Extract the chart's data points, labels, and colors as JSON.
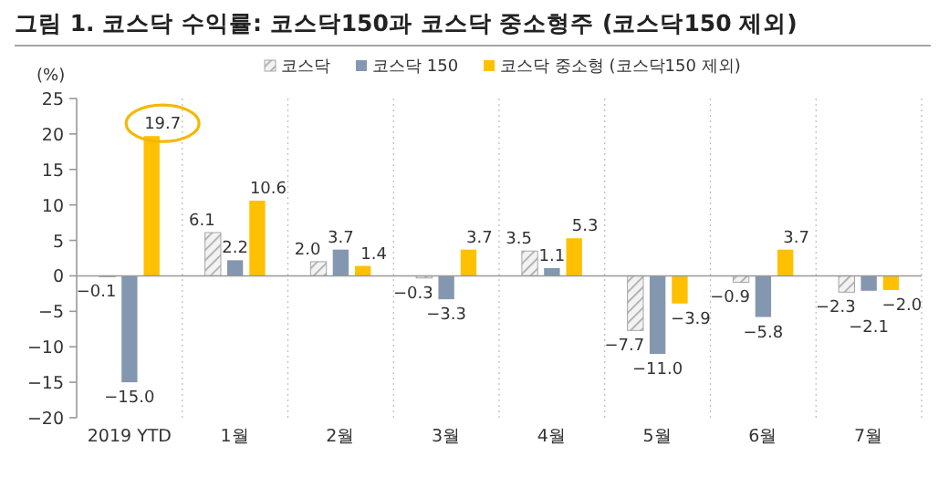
{
  "chart_data": {
    "type": "bar",
    "title": "그림 1. 코스닥 수익률: 코스닥150과 코스닥 중소형주 (코스닥150 제외)",
    "ylabel": "(%)",
    "categories": [
      "2019 YTD",
      "1월",
      "2월",
      "3월",
      "4월",
      "5월",
      "6월",
      "7월"
    ],
    "series": [
      {
        "name": "코스닥",
        "color": "#a6a6a6",
        "values": [
          -0.1,
          6.1,
          2.0,
          -0.3,
          3.5,
          -7.7,
          -0.9,
          -2.3
        ],
        "value_labels": [
          "−0.1",
          "6.1",
          "2.0",
          "−0.3",
          "3.5",
          "−7.7",
          "−0.9",
          "−2.3"
        ]
      },
      {
        "name": "코스닥 150",
        "color": "#8497b0",
        "values": [
          -15.0,
          2.2,
          3.7,
          -3.3,
          1.1,
          -11.0,
          -5.8,
          -2.1
        ],
        "value_labels": [
          "−15.0",
          "2.2",
          "3.7",
          "−3.3",
          "1.1",
          "−11.0",
          "−5.8",
          "−2.1"
        ]
      },
      {
        "name": "코스닥 중소형 (코스닥150 제외)",
        "color": "#ffc000",
        "values": [
          19.7,
          10.6,
          1.4,
          3.7,
          5.3,
          -3.9,
          3.7,
          -2.0
        ],
        "value_labels": [
          "19.7",
          "10.6",
          "1.4",
          "3.7",
          "5.3",
          "−3.9",
          "3.7",
          "−2.0"
        ]
      }
    ],
    "ylim": [
      -20,
      25
    ],
    "yticks": [
      -20,
      -15,
      -10,
      -5,
      0,
      5,
      10,
      15,
      20,
      25
    ],
    "legend": "top"
  }
}
